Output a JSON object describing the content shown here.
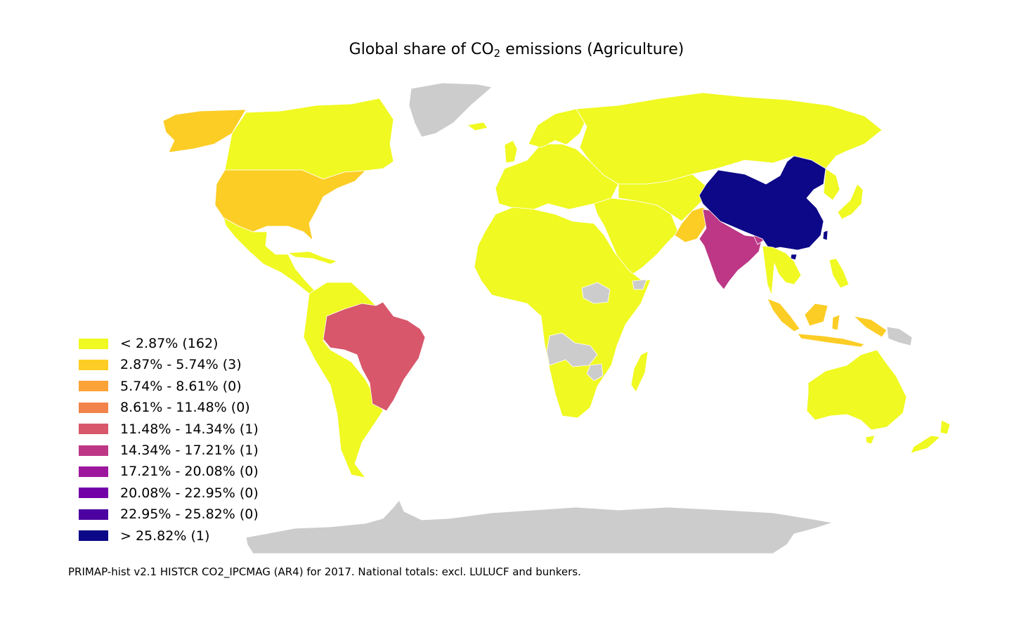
{
  "title": {
    "prefix": "Global share of CO",
    "subscript": "2",
    "suffix": " emissions (Agriculture)"
  },
  "colors": {
    "no_data": "#cccccc",
    "country_border": "#ffffff"
  },
  "legend": [
    {
      "label": "< 2.87% (162)",
      "color": "#f0f921"
    },
    {
      "label": "2.87% - 5.74% (3)",
      "color": "#fccd25"
    },
    {
      "label": "5.74% - 8.61% (0)",
      "color": "#fca338"
    },
    {
      "label": "8.61% - 11.48% (0)",
      "color": "#f2844b"
    },
    {
      "label": "11.48% - 14.34% (1)",
      "color": "#d8576b"
    },
    {
      "label": "14.34% - 17.21% (1)",
      "color": "#bd3786"
    },
    {
      "label": "17.21% - 20.08% (0)",
      "color": "#9c179e"
    },
    {
      "label": "20.08% - 22.95% (0)",
      "color": "#7201a8"
    },
    {
      "label": "22.95% - 25.82% (0)",
      "color": "#4c02a1"
    },
    {
      "label": "> 25.82% (1)",
      "color": "#0d0887"
    }
  ],
  "map": {
    "regions": [
      {
        "id": "canada",
        "bin": 0
      },
      {
        "id": "alaska",
        "bin": 1
      },
      {
        "id": "usa",
        "bin": 1
      },
      {
        "id": "mexico-central-america",
        "bin": 0
      },
      {
        "id": "caribbean",
        "bin": 0
      },
      {
        "id": "greenland",
        "bin": null
      },
      {
        "id": "iceland",
        "bin": 0
      },
      {
        "id": "south-america",
        "bin": 0
      },
      {
        "id": "brazil",
        "bin": 4
      },
      {
        "id": "europe",
        "bin": 0
      },
      {
        "id": "uk",
        "bin": 0
      },
      {
        "id": "scandinavia",
        "bin": 0
      },
      {
        "id": "russia",
        "bin": 0
      },
      {
        "id": "middle-east",
        "bin": 0
      },
      {
        "id": "central-asia",
        "bin": 0
      },
      {
        "id": "pakistan",
        "bin": 1
      },
      {
        "id": "india",
        "bin": 5
      },
      {
        "id": "bangladesh",
        "bin": 5
      },
      {
        "id": "china",
        "bin": 9
      },
      {
        "id": "taiwan",
        "bin": 9
      },
      {
        "id": "hainan",
        "bin": 9
      },
      {
        "id": "mongolia-korea",
        "bin": 0
      },
      {
        "id": "japan",
        "bin": 0
      },
      {
        "id": "southeast-asia",
        "bin": 0
      },
      {
        "id": "philippines",
        "bin": 0
      },
      {
        "id": "indonesia",
        "bin": 1
      },
      {
        "id": "papua-new-guinea",
        "bin": null
      },
      {
        "id": "africa",
        "bin": 0
      },
      {
        "id": "madagascar",
        "bin": 0
      },
      {
        "id": "south-sudan",
        "bin": null
      },
      {
        "id": "somalia",
        "bin": null
      },
      {
        "id": "angola-zambia",
        "bin": null
      },
      {
        "id": "zimbabwe",
        "bin": null
      },
      {
        "id": "australia",
        "bin": 0
      },
      {
        "id": "tasmania",
        "bin": 0
      },
      {
        "id": "new-zealand",
        "bin": 0
      },
      {
        "id": "antarctica",
        "bin": null
      }
    ]
  },
  "footnote": "PRIMAP-hist v2.1 HISTCR CO2_IPCMAG (AR4) for 2017. National totals: excl. LULUCF and bunkers."
}
